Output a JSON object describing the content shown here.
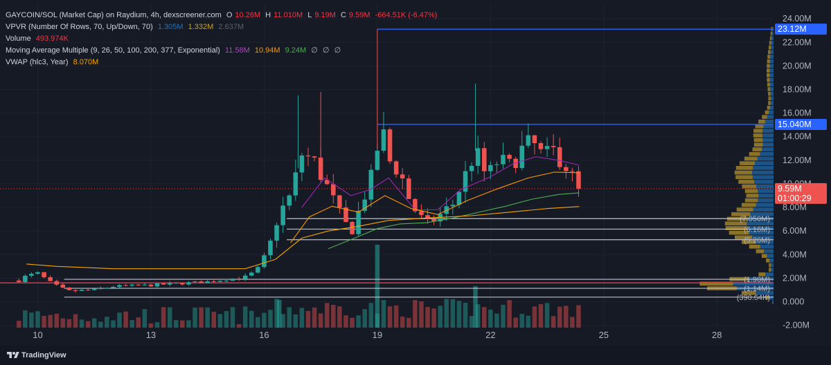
{
  "legend": {
    "title": "GAYCOIN/SOL (Market Cap) on Raydium, 4h, dexscreener.com",
    "ohlc": [
      {
        "k": "O",
        "v": "10.26M"
      },
      {
        "k": "H",
        "v": "11.010M"
      },
      {
        "k": "L",
        "v": "9.19M"
      },
      {
        "k": "C",
        "v": "9.59M"
      }
    ],
    "change": "-664.51K (-6.47%)",
    "vpvr_label": "VPVR (Number Of Rows, 70, Up/Down, 70)",
    "vpvr_values": [
      "1.305M",
      "1.332M",
      "2.637M"
    ],
    "volume_label": "Volume",
    "volume_value": "493.974K",
    "ma_label": "Moving Average Multiple (9, 26, 50, 100, 200, 377, Exponential)",
    "ma_values": [
      "11.58M",
      "10.94M",
      "9.24M",
      "∅",
      "∅",
      "∅"
    ],
    "vwap_label": "VWAP (hlc3, Year)",
    "vwap_value": "8.070M"
  },
  "colors": {
    "background": "#161a25",
    "up": "#26a69a",
    "down": "#ef5350",
    "ma9": "#9c27b0",
    "ma26": "#ff9800",
    "ma50": "#4caf50",
    "vwap": "#f7a600",
    "level_blue": "#2962ff",
    "level_white": "#d1d4dc",
    "support_red": "#f23645",
    "vpvr_up": "#1f5f99",
    "vpvr_down": "#a98a2b"
  },
  "footer": {
    "brand": "TradingView",
    "logo_icon": "tradingview-logo"
  },
  "chart_data": {
    "type": "candlestick",
    "x_ticks": [
      "10",
      "13",
      "16",
      "19",
      "22",
      "25",
      "28"
    ],
    "y_ticks": [
      "24.00M",
      "22.00M",
      "20.00M",
      "18.00M",
      "16.00M",
      "14.00M",
      "12.00M",
      "10.00M",
      "8.00M",
      "6.00M",
      "4.00M",
      "2.00M",
      "0.000",
      "-2.00M"
    ],
    "ylim": [
      -2.2,
      25.3
    ],
    "x_range_days": [
      9.0,
      29.5
    ],
    "price_labels": [
      {
        "text": "23.12M",
        "value": 23.12,
        "kind": "blue"
      },
      {
        "text": "15.040M",
        "value": 15.04,
        "kind": "blue"
      },
      {
        "text": "9.59M",
        "sub": "01:00:29",
        "value": 9.59,
        "kind": "last"
      }
    ],
    "horizontal_levels": [
      {
        "value": 23.12,
        "from_day": 19.0,
        "color": "blue"
      },
      {
        "value": 15.04,
        "from_day": 19.0,
        "color": "blue"
      },
      {
        "value": 7.05,
        "from_day": 16.6,
        "color": "white",
        "label": "(7.050M)"
      },
      {
        "value": 6.16,
        "from_day": 16.6,
        "color": "white",
        "label": "(6.16M)"
      },
      {
        "value": 5.26,
        "from_day": 16.6,
        "color": "white",
        "label": "(5.26M)"
      },
      {
        "value": 1.9,
        "from_day": 10.7,
        "color": "white",
        "label": "(1.90M)"
      },
      {
        "value": 1.14,
        "from_day": 10.7,
        "color": "white",
        "label": "(1.14M)"
      },
      {
        "value": 0.39064,
        "from_day": 10.7,
        "color": "white",
        "label": "(390.64K)"
      },
      {
        "value": 1.6,
        "from_day": 9.0,
        "color": "red"
      }
    ],
    "last_price": 9.59,
    "keypoints": [
      [
        9.5,
        1.8
      ],
      [
        9.7,
        2.2
      ],
      [
        10.0,
        2.4
      ],
      [
        10.4,
        1.5
      ],
      [
        10.8,
        0.9
      ],
      [
        11.5,
        1.0
      ],
      [
        12.0,
        1.3
      ],
      [
        13.0,
        1.4
      ],
      [
        14.0,
        1.6
      ],
      [
        14.5,
        1.7
      ],
      [
        15.0,
        1.9
      ],
      [
        15.5,
        2.1
      ],
      [
        15.8,
        2.6
      ],
      [
        16.1,
        4.3
      ],
      [
        16.4,
        7.5
      ],
      [
        16.7,
        9.0
      ],
      [
        17.0,
        12.5
      ],
      [
        17.3,
        12.0
      ],
      [
        17.6,
        10.2
      ],
      [
        18.0,
        7.5
      ],
      [
        18.3,
        5.8
      ],
      [
        18.6,
        8.5
      ],
      [
        18.9,
        11.0
      ],
      [
        19.1,
        15.0
      ],
      [
        19.3,
        12.0
      ],
      [
        19.6,
        11.0
      ],
      [
        19.9,
        8.2
      ],
      [
        20.3,
        6.5
      ],
      [
        20.6,
        7.2
      ],
      [
        21.0,
        8.3
      ],
      [
        21.3,
        10.5
      ],
      [
        21.6,
        12.8
      ],
      [
        21.9,
        10.5
      ],
      [
        22.2,
        12.0
      ],
      [
        22.5,
        11.5
      ],
      [
        22.8,
        12.8
      ],
      [
        23.1,
        13.5
      ],
      [
        23.4,
        12.2
      ],
      [
        23.7,
        12.8
      ],
      [
        24.0,
        11.5
      ],
      [
        24.35,
        9.59
      ]
    ],
    "ma_series": [
      {
        "name": "EMA 9",
        "points": [
          [
            17.0,
            8.0
          ],
          [
            17.6,
            10.5
          ],
          [
            18.3,
            9.0
          ],
          [
            18.8,
            9.5
          ],
          [
            19.3,
            10.5
          ],
          [
            20.0,
            7.8
          ],
          [
            20.6,
            7.8
          ],
          [
            21.2,
            9.5
          ],
          [
            22.0,
            10.6
          ],
          [
            22.6,
            11.7
          ],
          [
            23.2,
            12.3
          ],
          [
            23.8,
            12.0
          ],
          [
            24.35,
            11.58
          ]
        ]
      },
      {
        "name": "EMA 26",
        "points": [
          [
            16.7,
            5.0
          ],
          [
            17.2,
            7.2
          ],
          [
            17.8,
            8.1
          ],
          [
            18.5,
            7.6
          ],
          [
            19.2,
            9.0
          ],
          [
            19.9,
            7.9
          ],
          [
            20.6,
            7.4
          ],
          [
            21.4,
            8.6
          ],
          [
            22.2,
            9.6
          ],
          [
            23.0,
            10.5
          ],
          [
            23.7,
            11.0
          ],
          [
            24.35,
            10.94
          ]
        ]
      },
      {
        "name": "EMA 50",
        "points": [
          [
            17.7,
            4.5
          ],
          [
            18.4,
            5.4
          ],
          [
            19.0,
            6.2
          ],
          [
            19.6,
            6.6
          ],
          [
            20.3,
            6.7
          ],
          [
            21.0,
            7.1
          ],
          [
            21.7,
            7.6
          ],
          [
            22.4,
            8.1
          ],
          [
            23.1,
            8.7
          ],
          [
            23.8,
            9.1
          ],
          [
            24.35,
            9.24
          ]
        ]
      },
      {
        "name": "VWAP",
        "points": [
          [
            9.7,
            3.2
          ],
          [
            10.5,
            3.0
          ],
          [
            12.0,
            2.8
          ],
          [
            14.5,
            2.8
          ],
          [
            15.5,
            2.8
          ],
          [
            16.3,
            3.6
          ],
          [
            17.0,
            5.4
          ],
          [
            17.7,
            6.0
          ],
          [
            18.5,
            6.4
          ],
          [
            19.3,
            6.9
          ],
          [
            20.3,
            7.1
          ],
          [
            21.5,
            7.3
          ],
          [
            22.5,
            7.6
          ],
          [
            23.5,
            7.9
          ],
          [
            24.35,
            8.07
          ]
        ]
      }
    ]
  }
}
